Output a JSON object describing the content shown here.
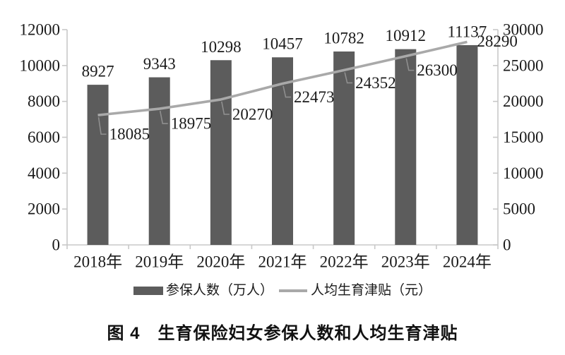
{
  "figure": {
    "caption": "图 4　生育保险妇女参保人数和人均生育津贴"
  },
  "chart_data": {
    "type": "bar",
    "subtype": "bar-line-combo",
    "title": "图 4　生育保险妇女参保人数和人均生育津贴",
    "categories": [
      "2018年",
      "2019年",
      "2020年",
      "2021年",
      "2022年",
      "2023年",
      "2024年"
    ],
    "series": [
      {
        "name": "参保人数（万人）",
        "type": "bar",
        "axis": "left",
        "values": [
          8927,
          9343,
          10298,
          10457,
          10782,
          10912,
          11137
        ]
      },
      {
        "name": "人均生育津贴（元）",
        "type": "line",
        "axis": "right",
        "values": [
          18085,
          18975,
          20270,
          22473,
          24352,
          26300,
          28290
        ]
      }
    ],
    "left_axis": {
      "min": 0,
      "max": 12000,
      "step": 2000
    },
    "right_axis": {
      "min": 0,
      "max": 30000,
      "step": 5000
    },
    "grid": false,
    "legend_position": "bottom",
    "data_labels": true
  },
  "colors": {
    "bar": "#5c5c5c",
    "line": "#a9a9a9",
    "axis": "#c8c8c8",
    "leader": "#8f8f8f",
    "text": "#1a1a1a",
    "background": "#ffffff"
  }
}
